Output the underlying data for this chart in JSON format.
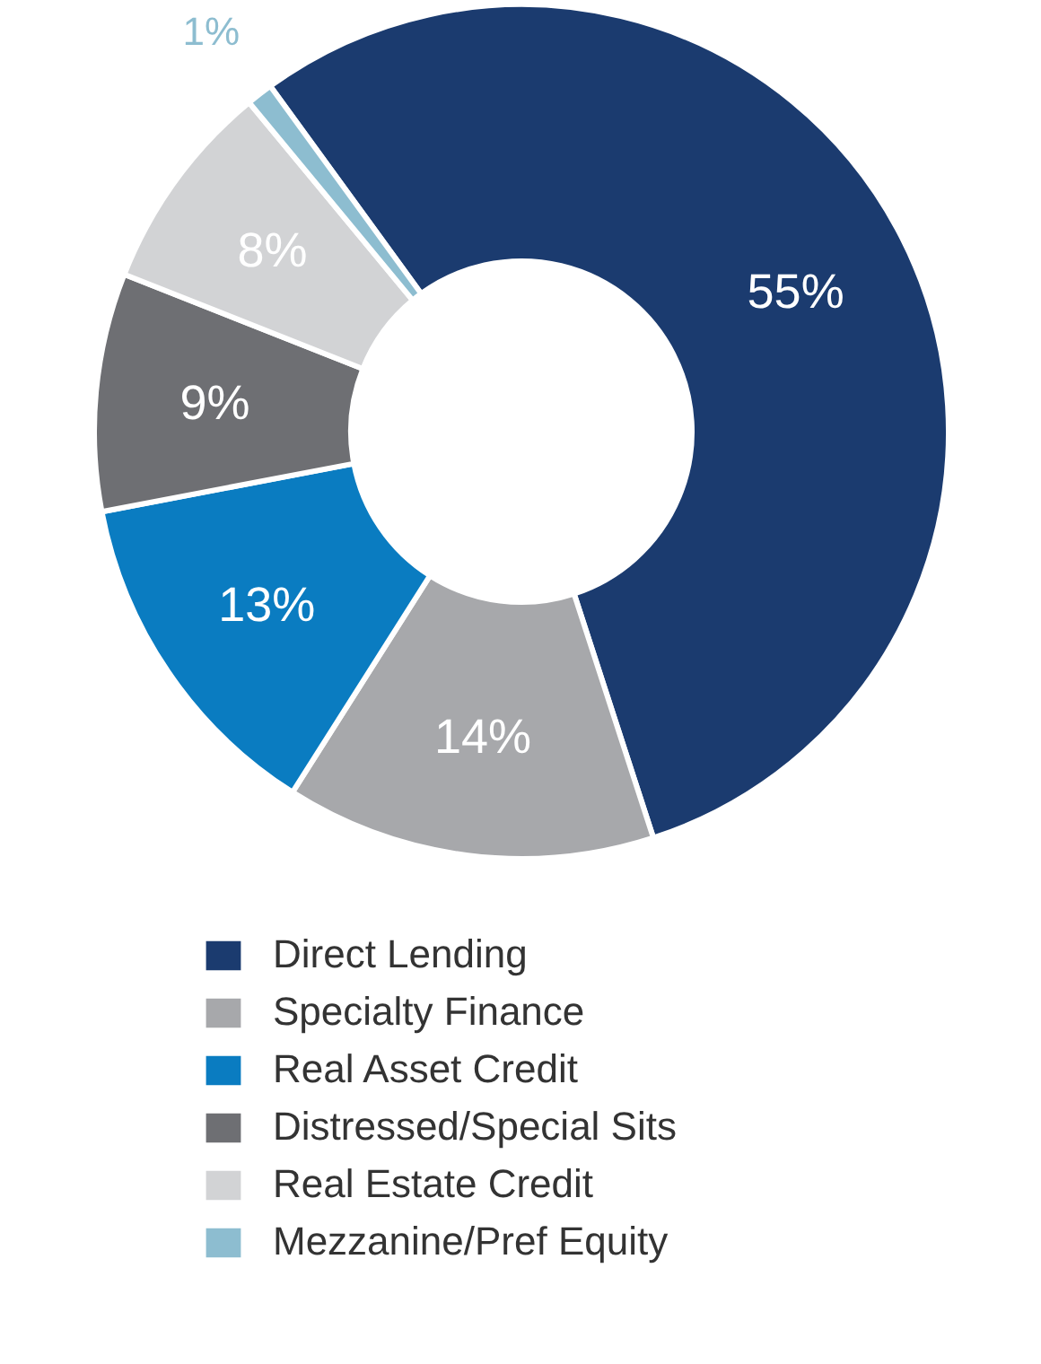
{
  "chart_data": {
    "type": "donut",
    "categories": [
      "Direct Lending",
      "Specialty Finance",
      "Real Asset Credit",
      "Distressed/Special Sits",
      "Real Estate Credit",
      "Mezzanine/Pref Equity"
    ],
    "values": [
      55,
      14,
      13,
      9,
      8,
      1
    ],
    "colors": [
      "#1b3b6f",
      "#a7a8ab",
      "#0a7cc1",
      "#6e6f73",
      "#d2d3d5",
      "#8dbdd0"
    ],
    "value_labels": [
      "55%",
      "14%",
      "13%",
      "9%",
      "8%",
      "1%"
    ],
    "legend": "bottom"
  }
}
